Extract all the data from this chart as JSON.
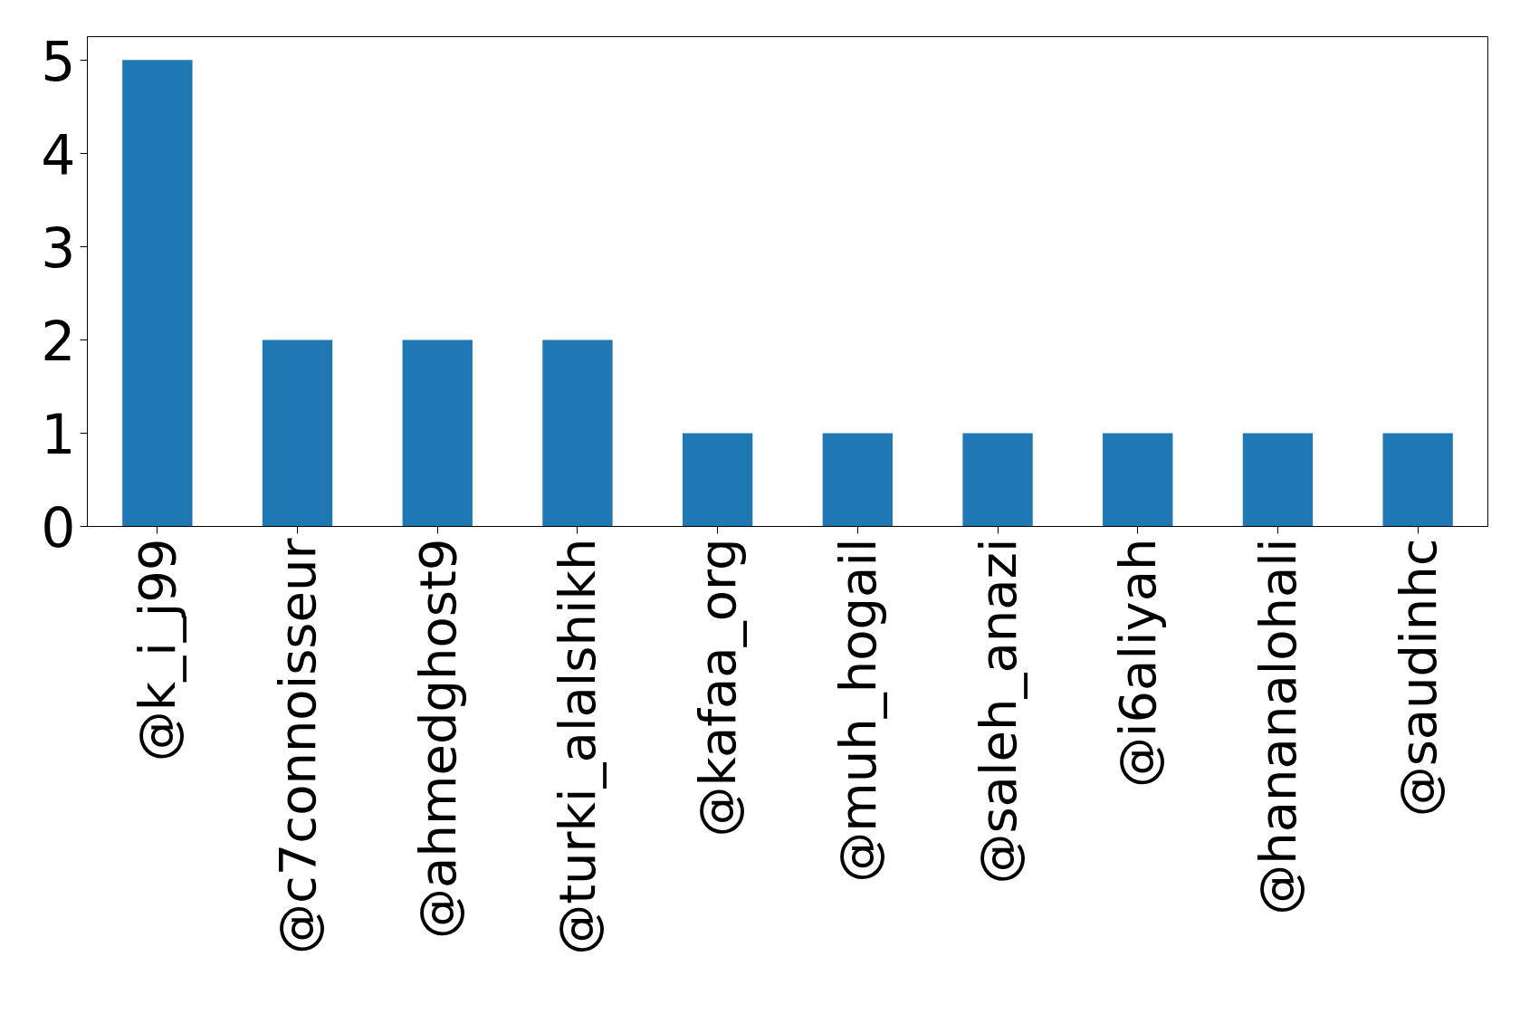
{
  "chart_data": {
    "type": "bar",
    "categories": [
      "@k_i_j99",
      "@c7connoisseur",
      "@ahmedghost9",
      "@turki_alalshikh",
      "@kafaa_org",
      "@muh_hogail",
      "@saleh_anazi",
      "@i6aliyah",
      "@hananalohali",
      "@saudinhc"
    ],
    "values": [
      5,
      2,
      2,
      2,
      1,
      1,
      1,
      1,
      1,
      1
    ],
    "color": "#1f77b4",
    "ylim": [
      0,
      5.25
    ],
    "yticks": [
      0,
      1,
      2,
      3,
      4,
      5
    ],
    "grid": false
  }
}
